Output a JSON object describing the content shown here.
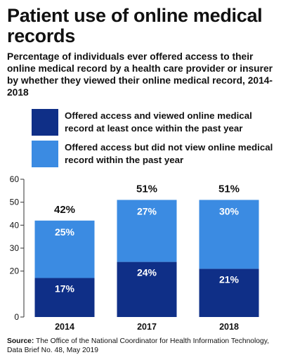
{
  "title": "Patient use of online medical records",
  "subtitle": "Percentage of individuals ever offered access to their online medical record by a health care provider or insurer by whether they viewed their online medical record, 2014-2018",
  "colors": {
    "viewed": "#0f2f87",
    "not_viewed": "#3b8be2",
    "inside_label": "#ffffff",
    "text": "#111111",
    "axis": "#333333"
  },
  "legend": [
    {
      "label": "Offered access and viewed online medical record at least once within the past year"
    },
    {
      "label": "Offered access but did not view online medical record within the past year"
    }
  ],
  "chart_data": {
    "type": "bar",
    "stacked": true,
    "categories": [
      "2014",
      "2017",
      "2018"
    ],
    "series": [
      {
        "name": "Offered access and viewed online medical record at least once within the past year",
        "values": [
          17,
          24,
          21
        ],
        "labels": [
          "17%",
          "24%",
          "21%"
        ]
      },
      {
        "name": "Offered access but did not view online medical record within the past year",
        "values": [
          25,
          27,
          30
        ],
        "labels": [
          "25%",
          "27%",
          "30%"
        ]
      }
    ],
    "totals": [
      "42%",
      "51%",
      "51%"
    ],
    "ylim": [
      0,
      60
    ],
    "yticks": [
      "0",
      "20",
      "30",
      "40",
      "50",
      "60"
    ],
    "ytick_values": [
      0,
      20,
      30,
      40,
      50,
      60
    ],
    "grid": false,
    "legend_position": "top"
  },
  "source": {
    "label": "Source:",
    "text": "The Office of the National Coordinator for Health Information Technology, Data Brief No. 48, May 2019"
  }
}
